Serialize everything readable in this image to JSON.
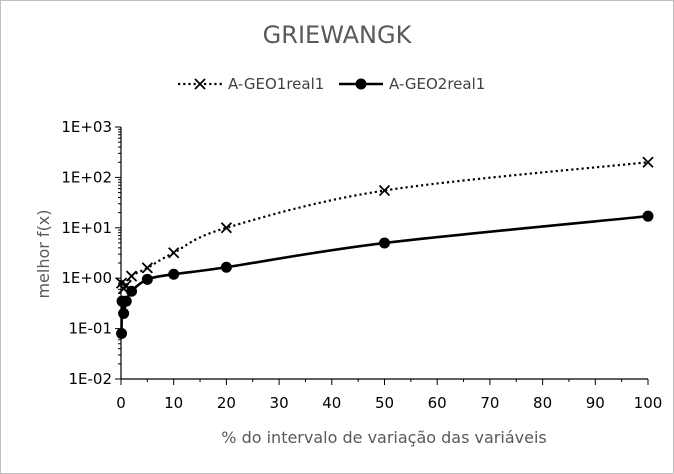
{
  "chart_data": {
    "type": "line",
    "title": "GRIEWANGK",
    "xlabel": "% do intervalo de variação das variáveis",
    "ylabel": "melhor f(x)",
    "xlim": [
      0,
      100
    ],
    "ylim": [
      0.01,
      1000
    ],
    "yscale": "log",
    "x_ticks": [
      0,
      10,
      20,
      30,
      40,
      50,
      60,
      70,
      80,
      90,
      100
    ],
    "x_tick_labels": [
      "0",
      "10",
      "20",
      "30",
      "40",
      "50",
      "60",
      "70",
      "80",
      "90",
      "100"
    ],
    "y_ticks": [
      0.01,
      0.1,
      1,
      10,
      100,
      1000
    ],
    "y_tick_labels": [
      "1E-02",
      "1E-01",
      "1E+00",
      "1E+01",
      "1E+02",
      "1E+03"
    ],
    "grid": false,
    "legend_position": "top",
    "series": [
      {
        "name": "A-GEO1real1",
        "style": "dotted",
        "marker": "x",
        "color": "#000000",
        "x": [
          0.1,
          0.5,
          1,
          2,
          5,
          10,
          20,
          50,
          100
        ],
        "y": [
          0.8,
          0.62,
          0.72,
          1.1,
          1.6,
          3.2,
          10,
          55,
          200
        ]
      },
      {
        "name": "A-GEO2real1",
        "style": "solid",
        "marker": "circle",
        "color": "#000000",
        "x": [
          0.1,
          0.2,
          0.5,
          1,
          2,
          5,
          10,
          20,
          50,
          100
        ],
        "y": [
          0.08,
          0.35,
          0.2,
          0.35,
          0.55,
          0.95,
          1.2,
          1.65,
          5,
          17
        ]
      }
    ]
  }
}
